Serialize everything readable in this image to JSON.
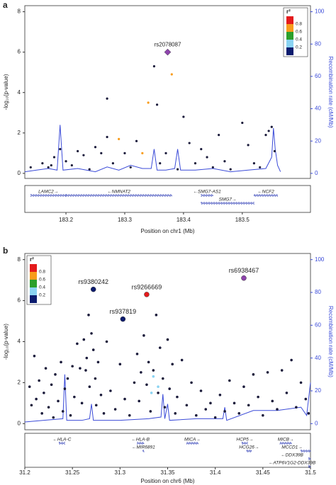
{
  "chart_data": [
    {
      "type": "scatter",
      "panel": "a",
      "xlabel": "Position on chr1 (Mb)",
      "ylabel": "-log₁₀(p-value)",
      "y2label": "Recombination rate (cM/Mb)",
      "xlim": [
        183.13,
        183.616
      ],
      "xticks": [
        183.2,
        183.3,
        183.4,
        183.5
      ],
      "ylim": [
        -0.25,
        8.3
      ],
      "yticks": [
        0,
        2,
        4,
        6,
        8
      ],
      "y2lim": [
        -3.125,
        103.75
      ],
      "y2ticks": [
        0,
        20,
        40,
        60,
        80,
        100
      ],
      "legend": {
        "title": "r²",
        "corner": "top-right",
        "colors": [
          "#e41a1c",
          "#f89c1c",
          "#2ca02c",
          "#8ad3f2",
          "#0b1b6e"
        ],
        "ticks": [
          0.8,
          0.6,
          0.4,
          0.2
        ]
      },
      "series": [
        {
          "color": "#1a1a3a",
          "x": [
            183.35,
            183.355,
            183.27,
            183.4,
            183.27,
            183.32,
            183.25,
            183.26,
            183.22,
            183.23,
            183.19,
            183.18,
            183.16,
            183.17,
            183.2,
            183.21,
            183.24,
            183.28,
            183.3,
            183.31,
            183.36,
            183.37,
            183.39,
            183.41,
            183.42,
            183.43,
            183.44,
            183.45,
            183.46,
            183.47,
            183.48,
            183.5,
            183.51,
            183.52,
            183.53,
            183.54,
            183.545,
            183.55,
            183.555,
            183.175,
            183.14
          ],
          "values": [
            5.3,
            3.4,
            3.7,
            2.8,
            1.8,
            1.6,
            1.3,
            1.0,
            1.1,
            0.9,
            1.2,
            0.8,
            0.5,
            0.3,
            0.6,
            0.4,
            0.2,
            0.5,
            1.0,
            0.3,
            0.5,
            1.0,
            0.2,
            1.5,
            0.5,
            1.2,
            0.8,
            0.3,
            1.9,
            0.6,
            0.2,
            2.5,
            1.4,
            0.5,
            0.3,
            1.9,
            2.1,
            2.3,
            1.1,
            0.4,
            0.3
          ]
        },
        {
          "color": "#f89c1c",
          "x": [
            183.38,
            183.34,
            183.29,
            183.33
          ],
          "values": [
            4.9,
            3.5,
            1.7,
            1.0
          ]
        }
      ],
      "labeled_points": [
        {
          "label": "rs2078087",
          "x": 183.373,
          "value": 6.0,
          "color": "#8e44ad",
          "marker": "diamond"
        }
      ],
      "recombination": {
        "color": "#3b4bd8",
        "axis": "y2",
        "x": [
          183.13,
          183.15,
          183.17,
          183.185,
          183.19,
          183.195,
          183.22,
          183.25,
          183.27,
          183.29,
          183.31,
          183.33,
          183.345,
          183.35,
          183.355,
          183.37,
          183.385,
          183.39,
          183.395,
          183.42,
          183.45,
          183.48,
          183.51,
          183.54,
          183.55,
          183.553,
          183.556,
          183.56,
          183.565
        ],
        "values": [
          1,
          2,
          3,
          2,
          30,
          2,
          3,
          1,
          4,
          2,
          5,
          3,
          3,
          15,
          2,
          2,
          3,
          15,
          2,
          2,
          3,
          1,
          2,
          3,
          10,
          28,
          15,
          5,
          1
        ]
      },
      "genes": [
        {
          "label": "LAMC2→",
          "start": 183.14,
          "end": 183.2,
          "row": 0
        },
        {
          "label": "←NMNAT2",
          "start": 183.2,
          "end": 183.38,
          "row": 0
        },
        {
          "label": "←SMG7-AS1",
          "start": 183.43,
          "end": 183.45,
          "row": 0
        },
        {
          "label": "←NCF2",
          "start": 183.52,
          "end": 183.56,
          "row": 0
        },
        {
          "label": "SMG7→",
          "start": 183.43,
          "end": 183.52,
          "row": 1
        }
      ]
    },
    {
      "type": "scatter",
      "panel": "b",
      "xlabel": "Position on chr6 (Mb)",
      "ylabel": "-log₁₀(p-value)",
      "y2label": "Recombination rate (cM/Mb)",
      "xlim": [
        31.2,
        31.5
      ],
      "xticks": [
        31.2,
        31.25,
        31.3,
        31.35,
        31.4,
        31.45,
        31.5
      ],
      "ylim": [
        -0.3,
        8.3
      ],
      "yticks": [
        0,
        2,
        4,
        6,
        8
      ],
      "y2lim": [
        -3.75,
        103.75
      ],
      "y2ticks": [
        0,
        20,
        40,
        60,
        80,
        100
      ],
      "legend": {
        "title": "r²",
        "corner": "top-left",
        "colors": [
          "#e41a1c",
          "#f89c1c",
          "#2ca02c",
          "#8ad3f2",
          "#0b1b6e"
        ],
        "ticks": [
          0.8,
          0.6,
          0.4,
          0.2
        ]
      },
      "series": [
        {
          "color": "#1a1a3a",
          "x": [
            31.205,
            31.207,
            31.21,
            31.212,
            31.215,
            31.218,
            31.22,
            31.222,
            31.225,
            31.228,
            31.23,
            31.232,
            31.235,
            31.238,
            31.24,
            31.242,
            31.245,
            31.248,
            31.25,
            31.252,
            31.255,
            31.258,
            31.26,
            31.262,
            31.264,
            31.265,
            31.267,
            31.268,
            31.27,
            31.272,
            31.274,
            31.275,
            31.277,
            31.28,
            31.283,
            31.286,
            31.29,
            31.295,
            31.3,
            31.305,
            31.31,
            31.315,
            31.318,
            31.32,
            31.322,
            31.325,
            31.328,
            31.33,
            31.332,
            31.335,
            31.338,
            31.34,
            31.342,
            31.345,
            31.347,
            31.35,
            31.352,
            31.355,
            31.358,
            31.36,
            31.365,
            31.37,
            31.375,
            31.38,
            31.385,
            31.39,
            31.395,
            31.4,
            31.405,
            31.41,
            31.415,
            31.42,
            31.425,
            31.43,
            31.435,
            31.44,
            31.445,
            31.45,
            31.455,
            31.46,
            31.465,
            31.47,
            31.475,
            31.48,
            31.485,
            31.49,
            31.495,
            31.498
          ],
          "values": [
            1.8,
            0.9,
            3.3,
            1.2,
            2.1,
            0.5,
            1.5,
            2.7,
            0.8,
            1.9,
            0.3,
            2.4,
            1.1,
            3.0,
            0.6,
            1.7,
            2.2,
            0.4,
            2.8,
            1.3,
            3.9,
            2.7,
            1.0,
            4.1,
            2.6,
            3.2,
            5.3,
            1.8,
            4.4,
            3.6,
            2.2,
            0.9,
            3.0,
            1.4,
            0.5,
            4.0,
            1.6,
            0.7,
            2.9,
            1.2,
            0.4,
            2.0,
            3.4,
            1.1,
            2.5,
            4.3,
            1.9,
            3.0,
            0.6,
            2.6,
            5.3,
            1.5,
            3.7,
            2.2,
            0.8,
            4.1,
            1.7,
            2.9,
            0.5,
            1.3,
            3.1,
            0.9,
            2.0,
            0.4,
            1.6,
            0.7,
            1.0,
            0.3,
            1.4,
            0.6,
            2.1,
            1.0,
            0.5,
            1.8,
            0.9,
            2.4,
            1.3,
            0.4,
            2.5,
            1.1,
            0.7,
            2.6,
            1.5,
            3.1,
            0.8,
            2.0,
            1.2,
            0.5
          ]
        },
        {
          "color": "#8ad3f2",
          "x": [
            31.335,
            31.34,
            31.333
          ],
          "values": [
            2.3,
            1.8,
            1.5
          ]
        }
      ],
      "labeled_points": [
        {
          "label": "rs9380242",
          "x": 31.272,
          "value": 6.55,
          "color": "#0b1b6e",
          "marker": "circle"
        },
        {
          "label": "rs937819",
          "x": 31.303,
          "value": 5.1,
          "color": "#0b1b6e",
          "marker": "circle"
        },
        {
          "label": "rs9266669",
          "x": 31.328,
          "value": 6.3,
          "color": "#e41a1c",
          "marker": "circle"
        },
        {
          "label": "rs6938467",
          "x": 31.43,
          "value": 7.1,
          "color": "#8e44ad",
          "marker": "circle"
        }
      ],
      "recombination": {
        "color": "#3b4bd8",
        "axis": "y2",
        "x": [
          31.2,
          31.22,
          31.24,
          31.242,
          31.244,
          31.26,
          31.268,
          31.27,
          31.272,
          31.3,
          31.33,
          31.343,
          31.345,
          31.347,
          31.35,
          31.352,
          31.38,
          31.408,
          31.41,
          31.412,
          31.44,
          31.465,
          31.49,
          31.496,
          31.5
        ],
        "values": [
          1,
          2,
          3,
          30,
          2,
          2,
          3,
          12,
          2,
          2,
          3,
          4,
          18,
          3,
          12,
          2,
          3,
          3,
          10,
          2,
          8,
          8,
          10,
          5,
          25
        ]
      },
      "genes": [
        {
          "label": "←HLA-C",
          "start": 31.236,
          "end": 31.242,
          "row": 0
        },
        {
          "label": "←HLA-B",
          "start": 31.318,
          "end": 31.325,
          "row": 0
        },
        {
          "label": "←MIR6891",
          "start": 31.324,
          "end": 31.325,
          "row": 1
        },
        {
          "label": "MICA→",
          "start": 31.37,
          "end": 31.382,
          "row": 0
        },
        {
          "label": "HCP5→",
          "start": 31.428,
          "end": 31.434,
          "row": 0
        },
        {
          "label": "HCG26→",
          "start": 31.433,
          "end": 31.438,
          "row": 1
        },
        {
          "label": "MICB→",
          "start": 31.468,
          "end": 31.48,
          "row": 0
        },
        {
          "label": "MCCD1→",
          "start": 31.49,
          "end": 31.5,
          "row": 1
        },
        {
          "label": "←DDX39B",
          "start": 31.498,
          "end": 31.5,
          "row": 2
        },
        {
          "label": "←ATP6V1G2-DDX39B",
          "start": 31.498,
          "end": 31.5,
          "row": 3
        }
      ]
    }
  ]
}
